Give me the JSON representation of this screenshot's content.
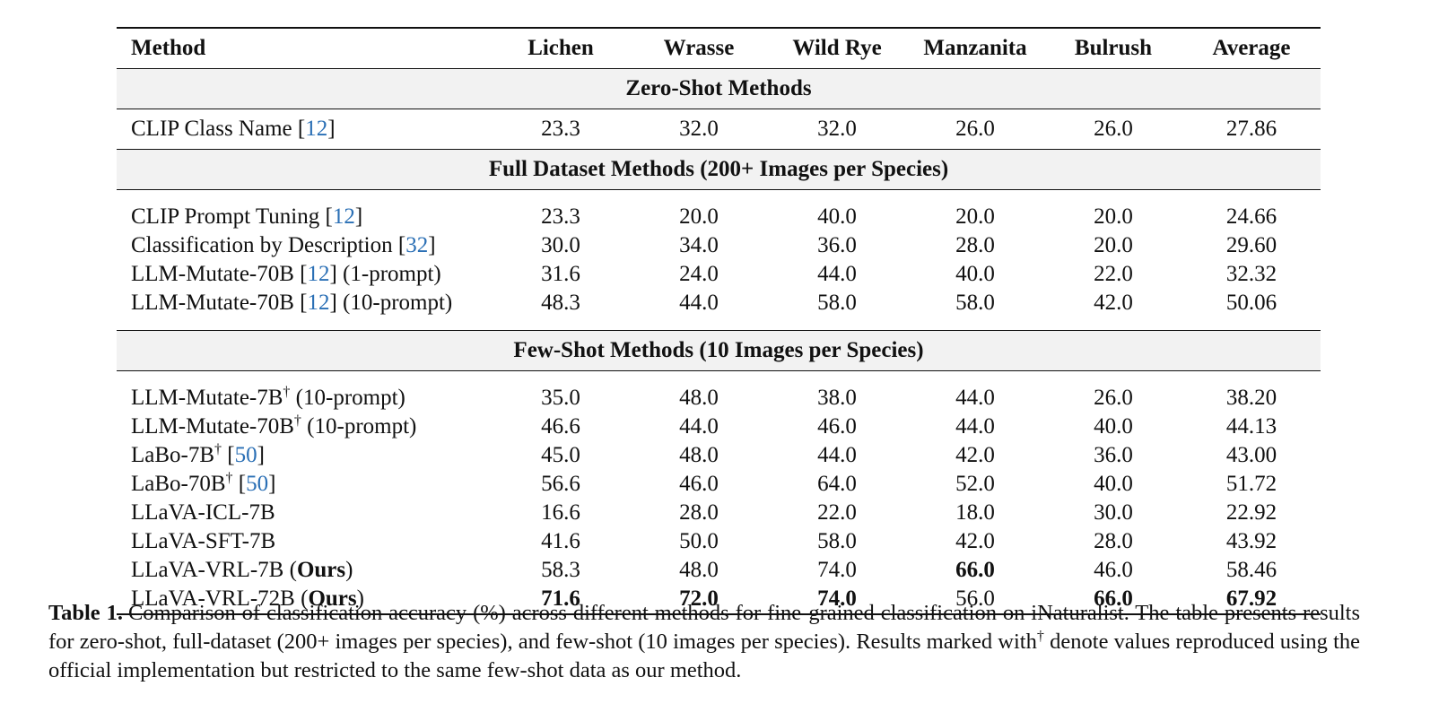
{
  "columns": [
    "Method",
    "Lichen",
    "Wrasse",
    "Wild Rye",
    "Manzanita",
    "Bulrush",
    "Average"
  ],
  "sections": [
    {
      "title": "Zero-Shot Methods",
      "rows": [
        {
          "parts": [
            {
              "t": "CLIP Class Name ["
            },
            {
              "t": "12",
              "cite": true
            },
            {
              "t": "]"
            }
          ],
          "values": [
            "23.3",
            "32.0",
            "32.0",
            "26.0",
            "26.0",
            "27.86"
          ],
          "bold": []
        }
      ]
    },
    {
      "title": "Full Dataset Methods (200+ Images per Species)",
      "rows": [
        {
          "parts": [
            {
              "t": "CLIP Prompt Tuning ["
            },
            {
              "t": "12",
              "cite": true
            },
            {
              "t": "]"
            }
          ],
          "values": [
            "23.3",
            "20.0",
            "40.0",
            "20.0",
            "20.0",
            "24.66"
          ],
          "bold": []
        },
        {
          "parts": [
            {
              "t": "Classification by Description ["
            },
            {
              "t": "32",
              "cite": true
            },
            {
              "t": "]"
            }
          ],
          "values": [
            "30.0",
            "34.0",
            "36.0",
            "28.0",
            "20.0",
            "29.60"
          ],
          "bold": []
        },
        {
          "parts": [
            {
              "t": "LLM-Mutate-70B ["
            },
            {
              "t": "12",
              "cite": true
            },
            {
              "t": "] (1-prompt)"
            }
          ],
          "values": [
            "31.6",
            "24.0",
            "44.0",
            "40.0",
            "22.0",
            "32.32"
          ],
          "bold": []
        },
        {
          "parts": [
            {
              "t": "LLM-Mutate-70B ["
            },
            {
              "t": "12",
              "cite": true
            },
            {
              "t": "] (10-prompt)"
            }
          ],
          "values": [
            "48.3",
            "44.0",
            "58.0",
            "58.0",
            "42.0",
            "50.06"
          ],
          "bold": []
        }
      ]
    },
    {
      "title": "Few-Shot Methods (10 Images per Species)",
      "rows": [
        {
          "parts": [
            {
              "t": "LLM-Mutate-7B"
            },
            {
              "t": "†",
              "sup": true
            },
            {
              "t": " (10-prompt)"
            }
          ],
          "values": [
            "35.0",
            "48.0",
            "38.0",
            "44.0",
            "26.0",
            "38.20"
          ],
          "bold": []
        },
        {
          "parts": [
            {
              "t": "LLM-Mutate-70B"
            },
            {
              "t": "†",
              "sup": true
            },
            {
              "t": " (10-prompt)"
            }
          ],
          "values": [
            "46.6",
            "44.0",
            "46.0",
            "44.0",
            "40.0",
            "44.13"
          ],
          "bold": []
        },
        {
          "parts": [
            {
              "t": "LaBo-7B"
            },
            {
              "t": "†",
              "sup": true
            },
            {
              "t": " ["
            },
            {
              "t": "50",
              "cite": true
            },
            {
              "t": "]"
            }
          ],
          "values": [
            "45.0",
            "48.0",
            "44.0",
            "42.0",
            "36.0",
            "43.00"
          ],
          "bold": []
        },
        {
          "parts": [
            {
              "t": "LaBo-70B"
            },
            {
              "t": "†",
              "sup": true
            },
            {
              "t": " ["
            },
            {
              "t": "50",
              "cite": true
            },
            {
              "t": "]"
            }
          ],
          "values": [
            "56.6",
            "46.0",
            "64.0",
            "52.0",
            "40.0",
            "51.72"
          ],
          "bold": []
        },
        {
          "parts": [
            {
              "t": "LLaVA-ICL-7B"
            }
          ],
          "values": [
            "16.6",
            "28.0",
            "22.0",
            "18.0",
            "30.0",
            "22.92"
          ],
          "bold": []
        },
        {
          "parts": [
            {
              "t": "LLaVA-SFT-7B"
            }
          ],
          "values": [
            "41.6",
            "50.0",
            "58.0",
            "42.0",
            "28.0",
            "43.92"
          ],
          "bold": []
        },
        {
          "parts": [
            {
              "t": "LLaVA-VRL-7B ("
            },
            {
              "t": "Ours",
              "bold": true
            },
            {
              "t": ")"
            }
          ],
          "values": [
            "58.3",
            "48.0",
            "74.0",
            "66.0",
            "46.0",
            "58.46"
          ],
          "bold": [
            3
          ]
        },
        {
          "parts": [
            {
              "t": "LLaVA-VRL-72B ("
            },
            {
              "t": "Ours",
              "bold": true
            },
            {
              "t": ")"
            }
          ],
          "values": [
            "71.6",
            "72.0",
            "74.0",
            "56.0",
            "66.0",
            "67.92"
          ],
          "bold": [
            0,
            1,
            2,
            4,
            5
          ]
        }
      ]
    }
  ],
  "caption": {
    "label": "Table 1.",
    "text_before_sup": "Comparison of classification accuracy (%) across different methods for fine-grained classification on iNaturalist. The table presents results for zero-shot, full-dataset (200+ images per species), and few-shot (10 images per species). Results marked with",
    "sup": "†",
    "text_after_sup": " denote values reproduced using the official implementation but restricted to the same few-shot data as our method."
  },
  "colors": {
    "citation": "#2a6fb5",
    "section_band": "#f2f2f2"
  }
}
